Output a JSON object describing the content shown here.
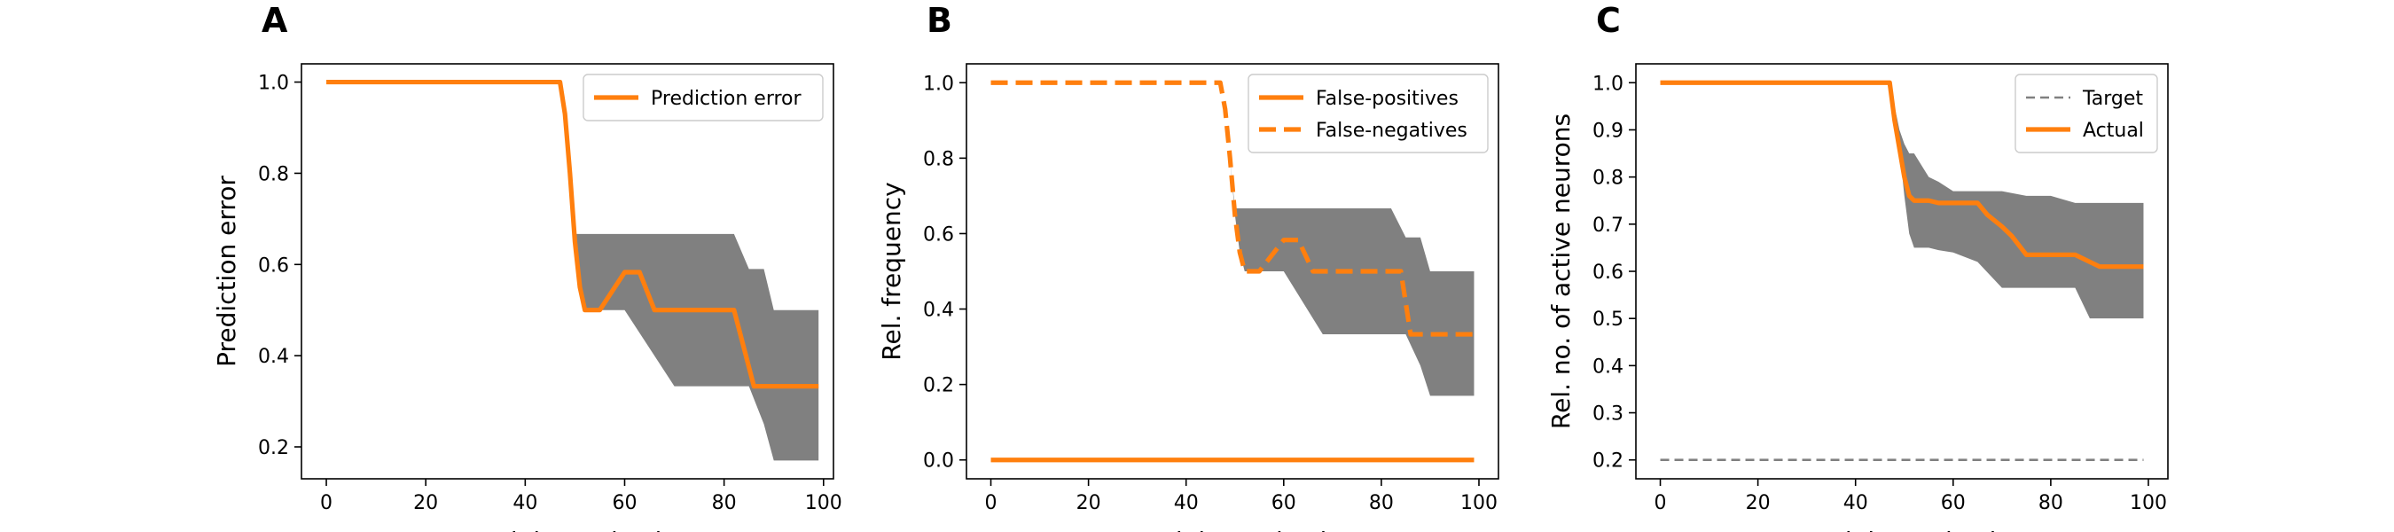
{
  "chart_data": [
    {
      "type": "line",
      "panel_label": "A",
      "xlabel": "# Training Episodes",
      "ylabel": "Prediction error",
      "xlim": [
        -5,
        102
      ],
      "ylim": [
        0.13,
        1.04
      ],
      "xticks": [
        0,
        20,
        40,
        60,
        80,
        100
      ],
      "yticks": [
        0.2,
        0.4,
        0.6,
        0.8,
        1.0
      ],
      "ytick_labels": [
        "0.2",
        "0.4",
        "0.6",
        "0.8",
        "1.0"
      ],
      "legend": {
        "position": "upper right",
        "entries": [
          "Prediction error"
        ]
      },
      "band": {
        "x": [
          0,
          47,
          48,
          49,
          50,
          51,
          52,
          60,
          70,
          80,
          82,
          85,
          88,
          90,
          92,
          99
        ],
        "lower": [
          1.0,
          1.0,
          0.93,
          0.8,
          0.65,
          0.55,
          0.5,
          0.5,
          0.333,
          0.333,
          0.333,
          0.333,
          0.25,
          0.17,
          0.17,
          0.17
        ],
        "upper": [
          1.0,
          1.0,
          0.93,
          0.8,
          0.667,
          0.667,
          0.667,
          0.667,
          0.667,
          0.667,
          0.667,
          0.59,
          0.59,
          0.5,
          0.5,
          0.5
        ]
      },
      "series": [
        {
          "name": "Prediction error",
          "style": "solid",
          "color": "#ff7f0e",
          "x": [
            0,
            47,
            48,
            49,
            50,
            51,
            52,
            55,
            60,
            63,
            66,
            70,
            75,
            80,
            82,
            86,
            90,
            95,
            99
          ],
          "y": [
            1.0,
            1.0,
            0.93,
            0.8,
            0.65,
            0.55,
            0.5,
            0.5,
            0.583,
            0.583,
            0.5,
            0.5,
            0.5,
            0.5,
            0.5,
            0.333,
            0.333,
            0.333,
            0.333
          ]
        }
      ]
    },
    {
      "type": "line",
      "panel_label": "B",
      "xlabel": "# Training Episodes",
      "ylabel": "Rel. frequency",
      "xlim": [
        -5,
        104
      ],
      "ylim": [
        -0.05,
        1.05
      ],
      "xticks": [
        0,
        20,
        40,
        60,
        80,
        100
      ],
      "yticks": [
        0.0,
        0.2,
        0.4,
        0.6,
        0.8,
        1.0
      ],
      "ytick_labels": [
        "0.0",
        "0.2",
        "0.4",
        "0.6",
        "0.8",
        "1.0"
      ],
      "legend": {
        "position": "upper right",
        "entries": [
          "False-positives",
          "False-negatives"
        ]
      },
      "band": {
        "x": [
          0,
          47,
          48,
          49,
          50,
          51,
          52,
          60,
          68,
          80,
          82,
          85,
          88,
          90,
          92,
          99
        ],
        "lower": [
          1.0,
          1.0,
          0.93,
          0.8,
          0.65,
          0.55,
          0.5,
          0.5,
          0.333,
          0.333,
          0.333,
          0.333,
          0.25,
          0.17,
          0.17,
          0.17
        ],
        "upper": [
          1.0,
          1.0,
          0.93,
          0.8,
          0.667,
          0.667,
          0.667,
          0.667,
          0.667,
          0.667,
          0.667,
          0.59,
          0.59,
          0.5,
          0.5,
          0.5
        ]
      },
      "series": [
        {
          "name": "False-positives",
          "style": "solid",
          "color": "#ff7f0e",
          "x": [
            0,
            99
          ],
          "y": [
            0.0,
            0.0
          ]
        },
        {
          "name": "False-negatives",
          "style": "dashed",
          "color": "#ff7f0e",
          "x": [
            0,
            47,
            48,
            49,
            50,
            51,
            52,
            55,
            60,
            63,
            66,
            70,
            75,
            80,
            84,
            86,
            90,
            95,
            99
          ],
          "y": [
            1.0,
            1.0,
            0.93,
            0.8,
            0.65,
            0.55,
            0.5,
            0.5,
            0.583,
            0.583,
            0.5,
            0.5,
            0.5,
            0.5,
            0.5,
            0.333,
            0.333,
            0.333,
            0.333
          ]
        }
      ]
    },
    {
      "type": "line",
      "panel_label": "C",
      "xlabel": "# Training Episodes",
      "ylabel": "Rel. no. of active neurons",
      "xlim": [
        -5,
        104
      ],
      "ylim": [
        0.16,
        1.04
      ],
      "xticks": [
        0,
        20,
        40,
        60,
        80,
        100
      ],
      "yticks": [
        0.2,
        0.3,
        0.4,
        0.5,
        0.6,
        0.7,
        0.8,
        0.9,
        1.0
      ],
      "ytick_labels": [
        "0.2",
        "0.3",
        "0.4",
        "0.5",
        "0.6",
        "0.7",
        "0.8",
        "0.9",
        "1.0"
      ],
      "legend": {
        "position": "upper right",
        "entries": [
          "Target",
          "Actual"
        ]
      },
      "band": {
        "x": [
          0,
          47,
          48,
          49,
          50,
          51,
          52,
          55,
          57,
          60,
          65,
          70,
          75,
          80,
          85,
          88,
          90,
          99
        ],
        "lower": [
          1.0,
          1.0,
          0.93,
          0.86,
          0.76,
          0.68,
          0.65,
          0.65,
          0.645,
          0.64,
          0.62,
          0.565,
          0.565,
          0.565,
          0.565,
          0.5,
          0.5,
          0.5
        ],
        "upper": [
          1.0,
          1.0,
          0.95,
          0.9,
          0.87,
          0.85,
          0.85,
          0.8,
          0.79,
          0.77,
          0.77,
          0.77,
          0.76,
          0.76,
          0.745,
          0.745,
          0.745,
          0.745
        ]
      },
      "series": [
        {
          "name": "Target",
          "style": "dashed",
          "color": "#808080",
          "x": [
            0,
            99
          ],
          "y": [
            0.2,
            0.2
          ]
        },
        {
          "name": "Actual",
          "style": "solid",
          "color": "#ff7f0e",
          "x": [
            0,
            47,
            48,
            49,
            50,
            51,
            52,
            55,
            57,
            60,
            62,
            65,
            67,
            70,
            72,
            75,
            80,
            85,
            90,
            95,
            99
          ],
          "y": [
            1.0,
            1.0,
            0.92,
            0.86,
            0.8,
            0.76,
            0.75,
            0.75,
            0.745,
            0.745,
            0.745,
            0.745,
            0.72,
            0.695,
            0.675,
            0.635,
            0.635,
            0.635,
            0.61,
            0.61,
            0.61
          ]
        }
      ]
    }
  ]
}
